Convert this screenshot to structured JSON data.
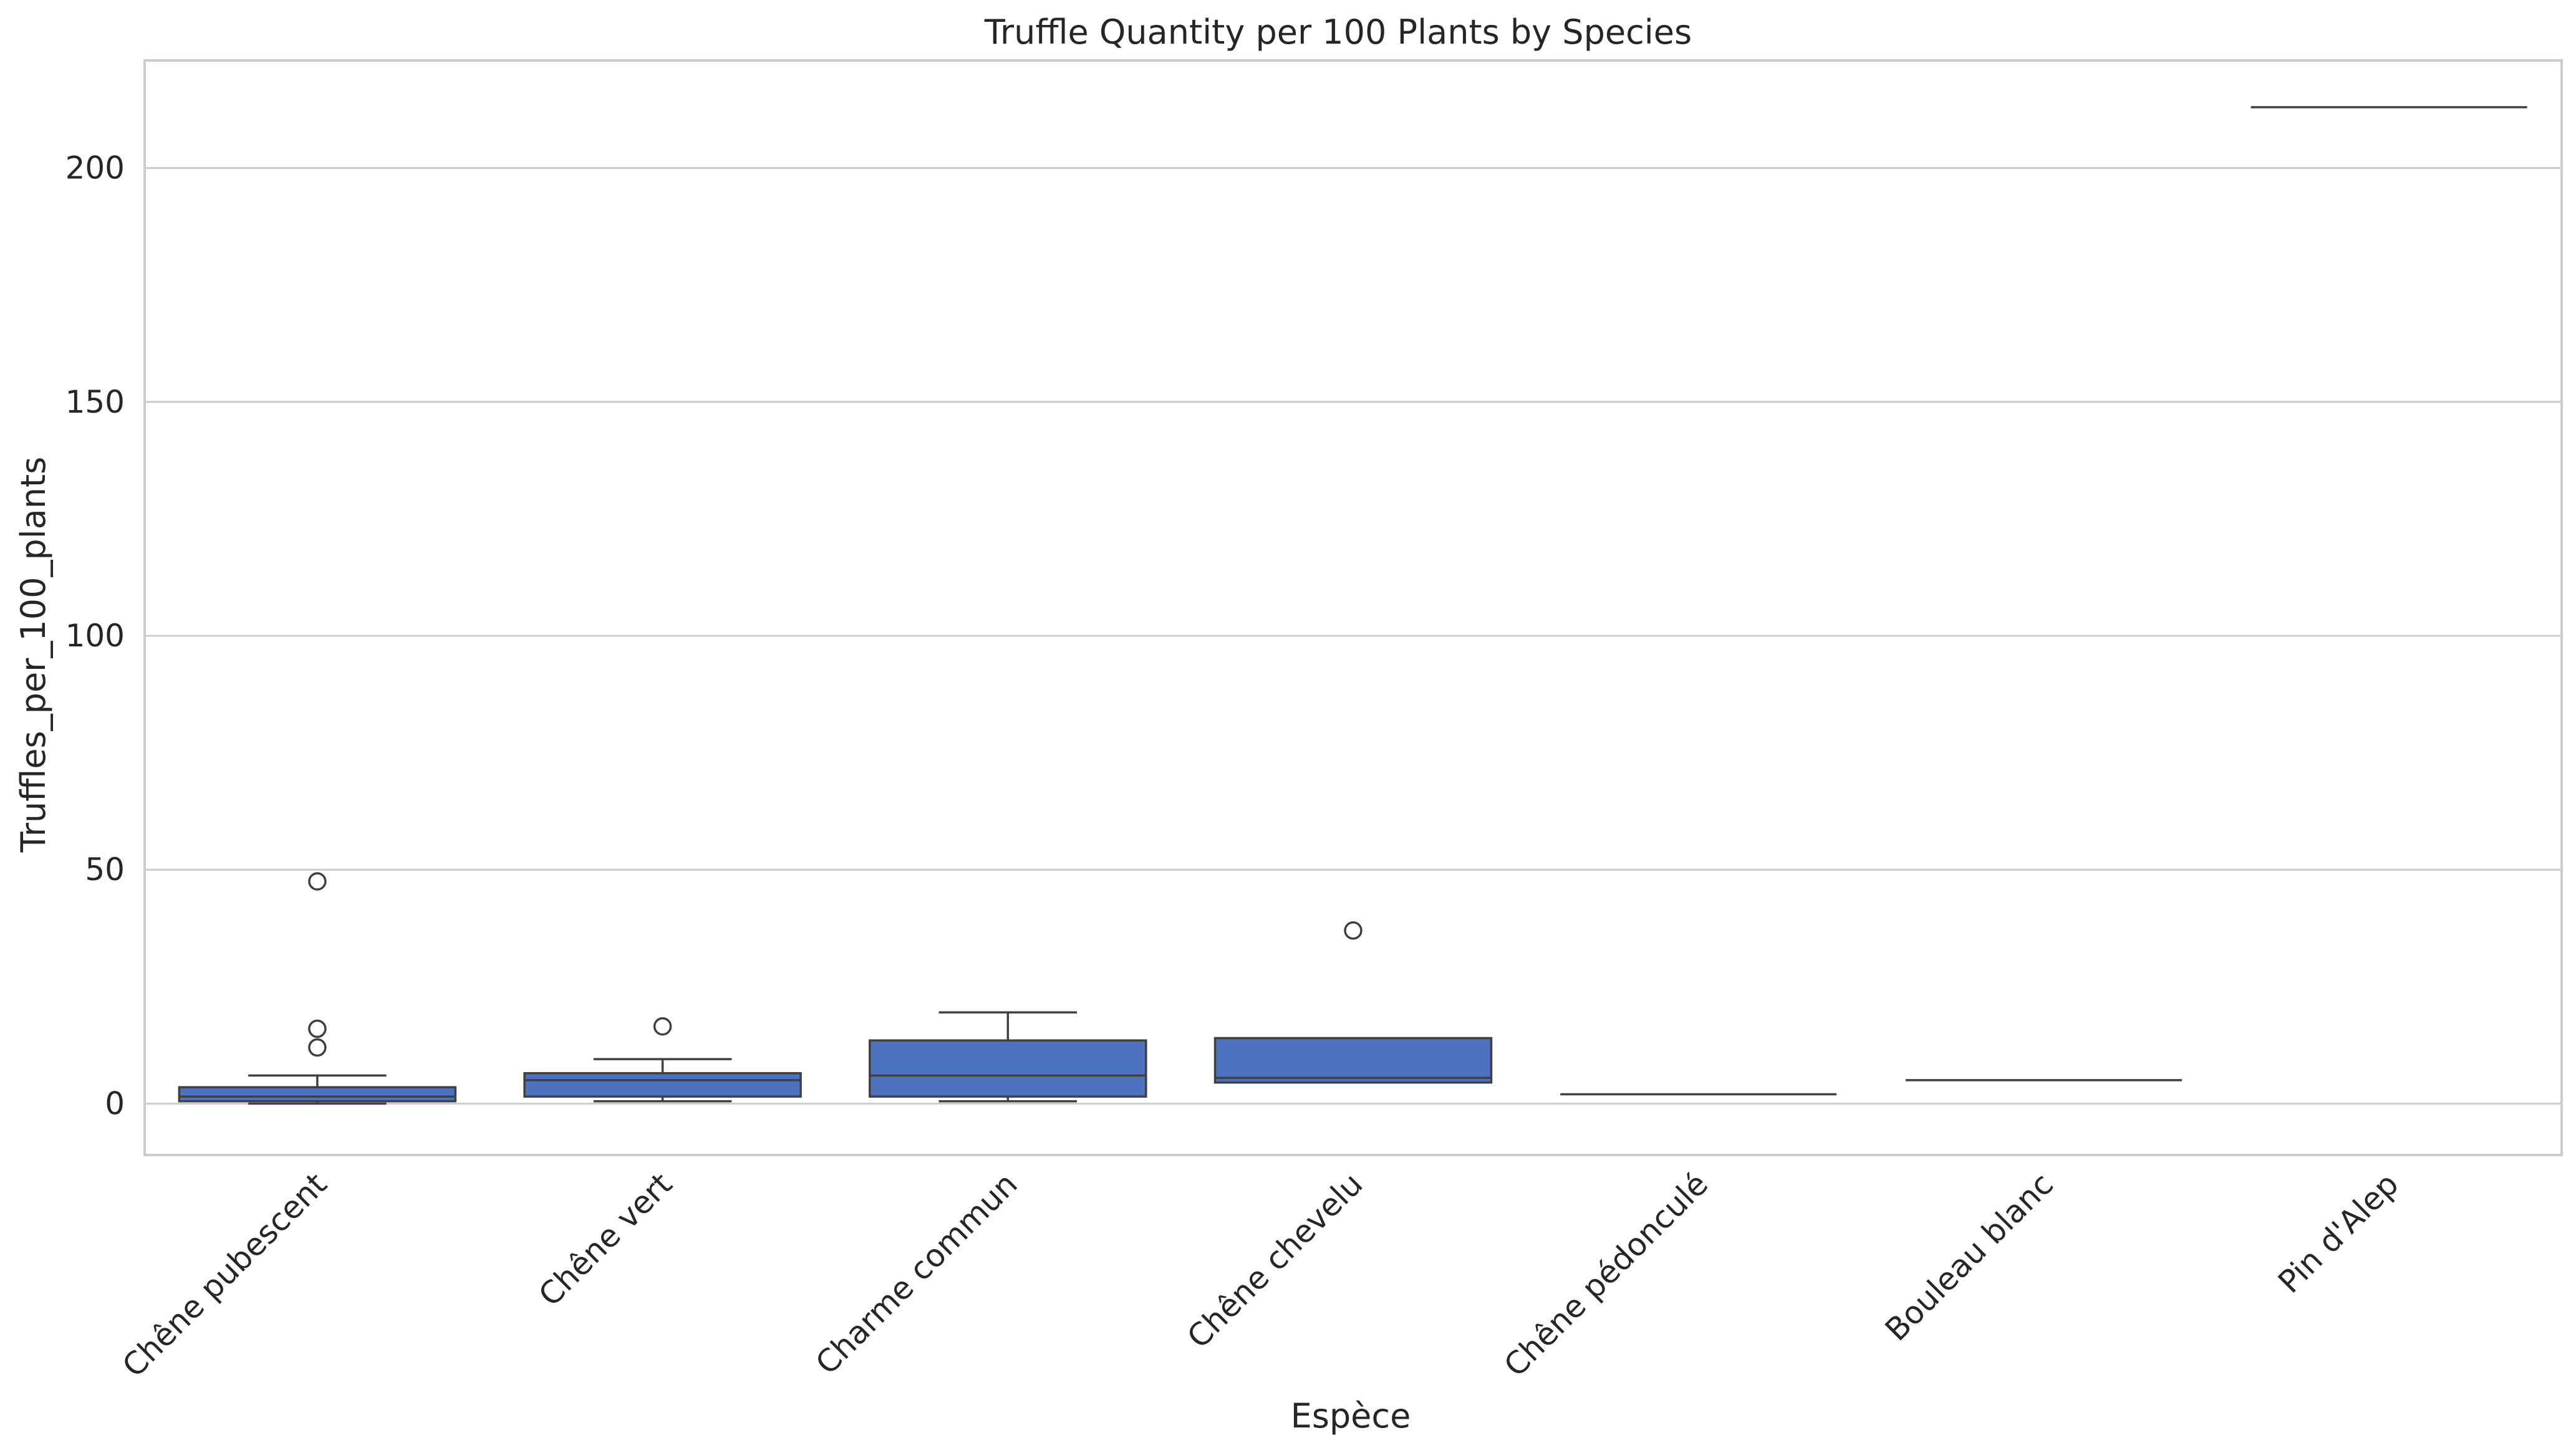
{
  "chart_data": {
    "type": "boxplot",
    "title": "Truffle Quantity per 100 Plants by Species",
    "xlabel": "Espèce",
    "ylabel": "Truffles_per_100_plants",
    "ylim": [
      -11,
      223
    ],
    "yticks": [
      0,
      50,
      100,
      150,
      200
    ],
    "grid": "horizontal",
    "box_color": "#4c72c0",
    "line_color": "#404040",
    "categories": [
      "Chêne pubescent",
      "Chêne vert",
      "Charme commun",
      "Chêne chevelu",
      "Chêne pédonculé",
      "Bouleau blanc",
      "Pin d'Alep"
    ],
    "boxes": [
      {
        "whislo": 0,
        "q1": 0.5,
        "med": 1.5,
        "q3": 3.5,
        "whishi": 6,
        "fliers": [
          12,
          16,
          47.5
        ]
      },
      {
        "whislo": 0.5,
        "q1": 1.5,
        "med": 5,
        "q3": 6.5,
        "whishi": 9.5,
        "fliers": [
          16.5
        ]
      },
      {
        "whislo": 0.5,
        "q1": 1.5,
        "med": 6,
        "q3": 13.5,
        "whishi": 19.5,
        "fliers": []
      },
      {
        "whislo": 4.5,
        "q1": 4.5,
        "med": 5.5,
        "q3": 14,
        "whishi": 14,
        "fliers": [
          37
        ]
      },
      {
        "whislo": 2,
        "q1": 2,
        "med": 2,
        "q3": 2,
        "whishi": 2,
        "fliers": []
      },
      {
        "whislo": 5,
        "q1": 5,
        "med": 5,
        "q3": 5,
        "whishi": 5,
        "fliers": []
      },
      {
        "whislo": 213,
        "q1": 213,
        "med": 213,
        "q3": 213,
        "whishi": 213,
        "fliers": []
      }
    ]
  }
}
